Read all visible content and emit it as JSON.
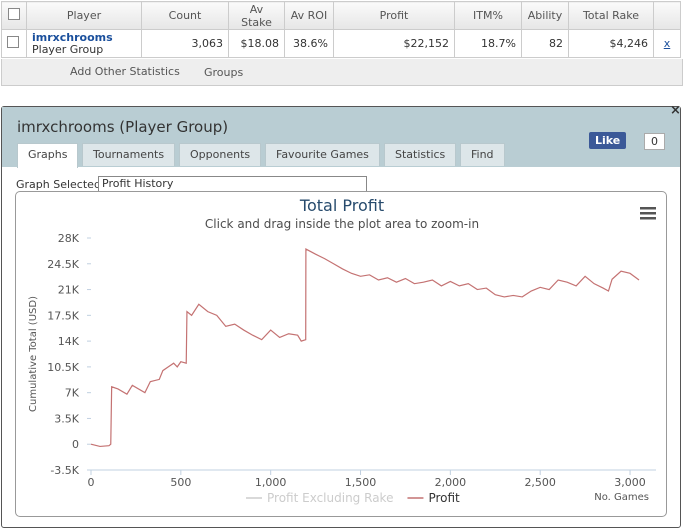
{
  "table": {
    "headers": [
      "Player",
      "Count",
      "Av Stake",
      "Av ROI",
      "Profit",
      "ITM%",
      "Ability",
      "Total Rake"
    ],
    "row": {
      "name": "imrxchrooms",
      "group": "Player Group",
      "cells": [
        "3,063",
        "$18.08",
        "38.6%",
        "$22,152",
        "18.7%",
        "82",
        "$4,246"
      ],
      "remove": "x"
    }
  },
  "toolbar": {
    "add": "Add Other Statistics",
    "groups": "Groups"
  },
  "panel": {
    "title": "imrxchrooms (Player Group)",
    "close": "×",
    "tabs": [
      "Graphs",
      "Tournaments",
      "Opponents",
      "Favourite Games",
      "Statistics",
      "Find"
    ],
    "like": "Like",
    "like_count": "0",
    "graph_label": "Graph Selected:",
    "graph_value": "Profit History"
  },
  "chart_data": {
    "type": "line",
    "title": "Total Profit",
    "subtitle": "Click and drag inside the plot area to zoom-in",
    "ylabel": "Cumulative Total (USD)",
    "xlabel": "No. Games",
    "x": [
      0,
      50,
      100,
      110,
      115,
      150,
      200,
      230,
      300,
      330,
      380,
      400,
      430,
      460,
      480,
      500,
      530,
      534,
      560,
      600,
      650,
      700,
      750,
      800,
      850,
      900,
      950,
      1000,
      1050,
      1100,
      1150,
      1170,
      1195,
      1196,
      1250,
      1300,
      1350,
      1400,
      1450,
      1500,
      1550,
      1600,
      1650,
      1700,
      1750,
      1800,
      1850,
      1900,
      1950,
      2000,
      2050,
      2100,
      2150,
      2200,
      2250,
      2300,
      2350,
      2400,
      2450,
      2500,
      2550,
      2600,
      2650,
      2700,
      2750,
      2800,
      2850,
      2880,
      2900,
      2950,
      3000,
      3050
    ],
    "series": [
      {
        "name": "Profit Excluding Rake",
        "color": "#cccccc",
        "visible": false,
        "values": [
          null,
          null,
          null,
          null,
          null,
          null,
          null,
          null,
          null,
          null,
          null,
          null,
          null,
          null,
          null,
          null,
          null,
          null,
          null,
          null,
          null,
          null,
          null,
          null,
          null,
          null,
          null,
          null,
          null,
          null,
          null,
          null,
          null,
          null,
          null,
          null,
          null,
          null,
          null,
          null,
          null,
          null,
          null,
          null,
          null,
          null,
          null,
          null,
          null,
          null,
          null,
          null,
          null,
          null,
          null,
          null,
          null,
          null,
          null,
          null,
          null,
          null,
          null,
          null,
          null,
          null,
          null,
          null,
          null,
          null,
          null,
          null
        ]
      },
      {
        "name": "Profit",
        "color": "#c47272",
        "visible": true,
        "values": [
          0,
          -300,
          -200,
          0,
          7800,
          7500,
          6800,
          8000,
          7000,
          8500,
          8800,
          10000,
          10500,
          11000,
          10500,
          11200,
          11000,
          18000,
          17500,
          19000,
          18000,
          17500,
          16000,
          16300,
          15500,
          14800,
          14200,
          15500,
          14500,
          15000,
          14800,
          14000,
          14200,
          26500,
          25800,
          25200,
          24500,
          23800,
          23200,
          22800,
          23000,
          22300,
          22600,
          22000,
          22500,
          21800,
          22000,
          22300,
          21500,
          22100,
          21500,
          21800,
          21000,
          21200,
          20300,
          20000,
          20200,
          20000,
          20800,
          21300,
          21000,
          22300,
          22000,
          21500,
          22800,
          21800,
          21200,
          20800,
          22400,
          23500,
          23200,
          22300
        ]
      }
    ],
    "xlim": [
      0,
      3100
    ],
    "ylim": [
      -3500,
      28000
    ],
    "xticks": [
      0,
      500,
      {
        "value": 1000,
        "label": "1,000"
      },
      {
        "value": 1500,
        "label": "1,500"
      },
      {
        "value": 2000,
        "label": "2,000"
      },
      {
        "value": 2500,
        "label": "2,500"
      },
      {
        "value": 3000,
        "label": "3,000"
      }
    ],
    "yticks": [
      {
        "value": -3500,
        "label": "-3.5K"
      },
      0,
      {
        "value": 3500,
        "label": "3.5K"
      },
      {
        "value": 7000,
        "label": "7K"
      },
      {
        "value": 10500,
        "label": "10.5K"
      },
      {
        "value": 14000,
        "label": "14K"
      },
      {
        "value": 17500,
        "label": "17.5K"
      },
      {
        "value": 21000,
        "label": "21K"
      },
      {
        "value": 24500,
        "label": "24.5K"
      },
      {
        "value": 28000,
        "label": "28K"
      }
    ],
    "grid": false
  }
}
